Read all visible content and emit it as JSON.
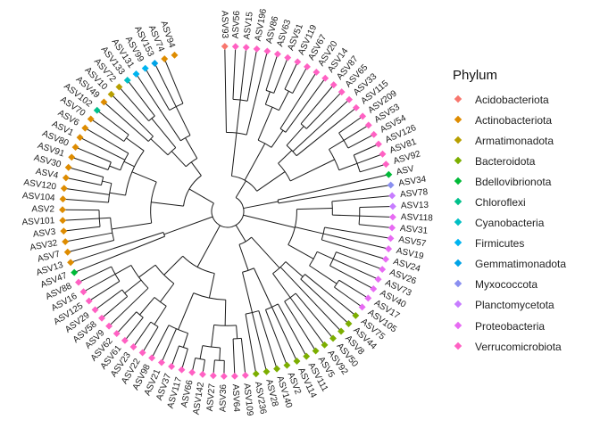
{
  "legend": {
    "title": "Phylum",
    "items": [
      {
        "label": "Acidobacteriota",
        "color": "#f8766d"
      },
      {
        "label": "Actinobacteriota",
        "color": "#de8c00"
      },
      {
        "label": "Armatimonadota",
        "color": "#b79f00"
      },
      {
        "label": "Bacteroidota",
        "color": "#7cae00"
      },
      {
        "label": "Bdellovibrionota",
        "color": "#00ba38"
      },
      {
        "label": "Chloroflexi",
        "color": "#00c08b"
      },
      {
        "label": "Cyanobacteria",
        "color": "#00bfc4"
      },
      {
        "label": "Firmicutes",
        "color": "#00b4f0"
      },
      {
        "label": "Gemmatimonadota",
        "color": "#00a3e6"
      },
      {
        "label": "Myxococcota",
        "color": "#8a8ff0"
      },
      {
        "label": "Planctomycetota",
        "color": "#c77cff"
      },
      {
        "label": "Proteobacteria",
        "color": "#e76bf3"
      },
      {
        "label": "Verrucomicrobiota",
        "color": "#ff61c3"
      }
    ]
  },
  "tips": [
    {
      "label": "ASV93",
      "phylum": "Acidobacteriota"
    },
    {
      "label": "ASV56",
      "phylum": "Verrucomicrobiota"
    },
    {
      "label": "ASV15",
      "phylum": "Verrucomicrobiota"
    },
    {
      "label": "ASV196",
      "phylum": "Verrucomicrobiota"
    },
    {
      "label": "ASV86",
      "phylum": "Verrucomicrobiota"
    },
    {
      "label": "ASV63",
      "phylum": "Verrucomicrobiota"
    },
    {
      "label": "ASV51",
      "phylum": "Verrucomicrobiota"
    },
    {
      "label": "ASV119",
      "phylum": "Verrucomicrobiota"
    },
    {
      "label": "ASV67",
      "phylum": "Verrucomicrobiota"
    },
    {
      "label": "ASV20",
      "phylum": "Verrucomicrobiota"
    },
    {
      "label": "ASV14",
      "phylum": "Verrucomicrobiota"
    },
    {
      "label": "ASV87",
      "phylum": "Verrucomicrobiota"
    },
    {
      "label": "ASV65",
      "phylum": "Verrucomicrobiota"
    },
    {
      "label": "ASV33",
      "phylum": "Verrucomicrobiota"
    },
    {
      "label": "ASV115",
      "phylum": "Verrucomicrobiota"
    },
    {
      "label": "ASV209",
      "phylum": "Verrucomicrobiota"
    },
    {
      "label": "ASV53",
      "phylum": "Verrucomicrobiota"
    },
    {
      "label": "ASV54",
      "phylum": "Verrucomicrobiota"
    },
    {
      "label": "ASV126",
      "phylum": "Verrucomicrobiota"
    },
    {
      "label": "ASV81",
      "phylum": "Verrucomicrobiota"
    },
    {
      "label": "ASV92",
      "phylum": "Verrucomicrobiota"
    },
    {
      "label": "ASV",
      "phylum": "Bdellovibrionota"
    },
    {
      "label": "ASV34",
      "phylum": "Myxococcota"
    },
    {
      "label": "ASV78",
      "phylum": "Planctomycetota"
    },
    {
      "label": "ASV13",
      "phylum": "Planctomycetota"
    },
    {
      "label": "ASV118",
      "phylum": "Proteobacteria"
    },
    {
      "label": "ASV31",
      "phylum": "Proteobacteria"
    },
    {
      "label": "ASV57",
      "phylum": "Proteobacteria"
    },
    {
      "label": "ASV19",
      "phylum": "Proteobacteria"
    },
    {
      "label": "ASV24",
      "phylum": "Proteobacteria"
    },
    {
      "label": "ASV26",
      "phylum": "Proteobacteria"
    },
    {
      "label": "ASV73",
      "phylum": "Proteobacteria"
    },
    {
      "label": "ASV40",
      "phylum": "Proteobacteria"
    },
    {
      "label": "ASV17",
      "phylum": "Proteobacteria"
    },
    {
      "label": "ASV105",
      "phylum": "Proteobacteria"
    },
    {
      "label": "ASV75",
      "phylum": "Bacteroidota"
    },
    {
      "label": "ASV44",
      "phylum": "Bacteroidota"
    },
    {
      "label": "ASV8",
      "phylum": "Bacteroidota"
    },
    {
      "label": "ASV50",
      "phylum": "Bacteroidota"
    },
    {
      "label": "ASV92",
      "phylum": "Bacteroidota"
    },
    {
      "label": "ASV5",
      "phylum": "Bacteroidota"
    },
    {
      "label": "ASV111",
      "phylum": "Bacteroidota"
    },
    {
      "label": "ASV114",
      "phylum": "Bacteroidota"
    },
    {
      "label": "ASV2",
      "phylum": "Bacteroidota"
    },
    {
      "label": "ASV140",
      "phylum": "Bacteroidota"
    },
    {
      "label": "ASV28",
      "phylum": "Bacteroidota"
    },
    {
      "label": "ASV236",
      "phylum": "Bacteroidota"
    },
    {
      "label": "ASV109",
      "phylum": "Verrucomicrobiota"
    },
    {
      "label": "ASV64",
      "phylum": "Verrucomicrobiota"
    },
    {
      "label": "ASV36",
      "phylum": "Verrucomicrobiota"
    },
    {
      "label": "ASV27",
      "phylum": "Verrucomicrobiota"
    },
    {
      "label": "ASV142",
      "phylum": "Verrucomicrobiota"
    },
    {
      "label": "ASV66",
      "phylum": "Verrucomicrobiota"
    },
    {
      "label": "ASV117",
      "phylum": "Verrucomicrobiota"
    },
    {
      "label": "ASV37",
      "phylum": "Verrucomicrobiota"
    },
    {
      "label": "ASV21",
      "phylum": "Verrucomicrobiota"
    },
    {
      "label": "ASV98",
      "phylum": "Verrucomicrobiota"
    },
    {
      "label": "ASV22",
      "phylum": "Verrucomicrobiota"
    },
    {
      "label": "ASV23",
      "phylum": "Verrucomicrobiota"
    },
    {
      "label": "ASV61",
      "phylum": "Verrucomicrobiota"
    },
    {
      "label": "ASV62",
      "phylum": "Verrucomicrobiota"
    },
    {
      "label": "ASV9",
      "phylum": "Verrucomicrobiota"
    },
    {
      "label": "ASV58",
      "phylum": "Verrucomicrobiota"
    },
    {
      "label": "ASV29",
      "phylum": "Verrucomicrobiota"
    },
    {
      "label": "ASV125",
      "phylum": "Verrucomicrobiota"
    },
    {
      "label": "ASV16",
      "phylum": "Verrucomicrobiota"
    },
    {
      "label": "ASV88",
      "phylum": "Verrucomicrobiota"
    },
    {
      "label": "ASV47",
      "phylum": "Bdellovibrionota"
    },
    {
      "label": "ASV13",
      "phylum": "Actinobacteriota"
    },
    {
      "label": "ASV7",
      "phylum": "Actinobacteriota"
    },
    {
      "label": "ASV32",
      "phylum": "Actinobacteriota"
    },
    {
      "label": "ASV3",
      "phylum": "Actinobacteriota"
    },
    {
      "label": "ASV101",
      "phylum": "Actinobacteriota"
    },
    {
      "label": "ASV2",
      "phylum": "Actinobacteriota"
    },
    {
      "label": "ASV104",
      "phylum": "Actinobacteriota"
    },
    {
      "label": "ASV120",
      "phylum": "Actinobacteriota"
    },
    {
      "label": "ASV4",
      "phylum": "Actinobacteriota"
    },
    {
      "label": "ASV30",
      "phylum": "Actinobacteriota"
    },
    {
      "label": "ASV91",
      "phylum": "Actinobacteriota"
    },
    {
      "label": "ASV80",
      "phylum": "Actinobacteriota"
    },
    {
      "label": "ASV1",
      "phylum": "Actinobacteriota"
    },
    {
      "label": "ASV6",
      "phylum": "Actinobacteriota"
    },
    {
      "label": "ASV70",
      "phylum": "Actinobacteriota"
    },
    {
      "label": "ASV102",
      "phylum": "Chloroflexi"
    },
    {
      "label": "ASV49",
      "phylum": "Actinobacteriota"
    },
    {
      "label": "ASV10",
      "phylum": "Armatimonadota"
    },
    {
      "label": "ASV72",
      "phylum": "Armatimonadota"
    },
    {
      "label": "ASV133",
      "phylum": "Cyanobacteria"
    },
    {
      "label": "ASV131",
      "phylum": "Firmicutes"
    },
    {
      "label": "ASV99",
      "phylum": "Firmicutes"
    },
    {
      "label": "ASV153",
      "phylum": "Gemmatimonadota"
    },
    {
      "label": "ASV74",
      "phylum": "Actinobacteriota"
    },
    {
      "label": "ASV94",
      "phylum": "Actinobacteriota"
    }
  ]
}
